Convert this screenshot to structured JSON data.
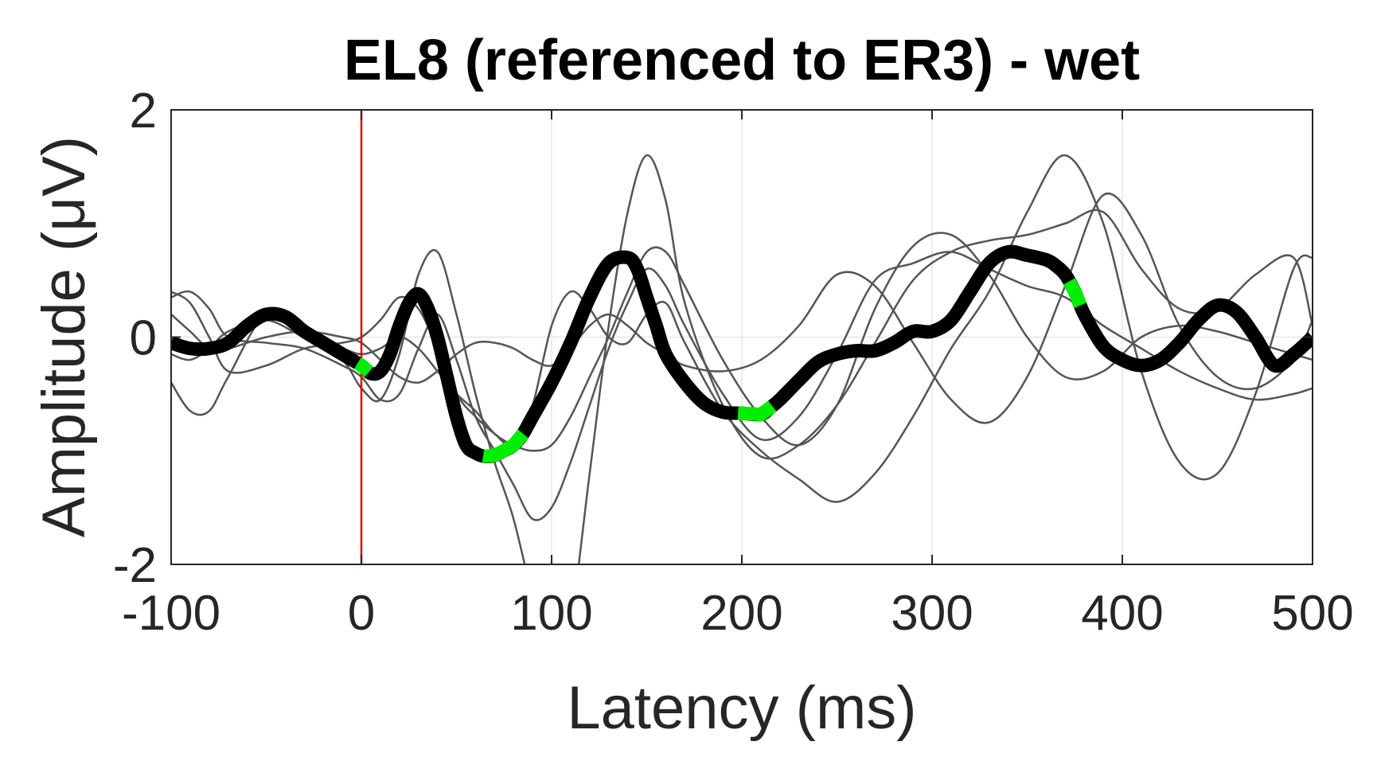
{
  "chart_data": {
    "type": "line",
    "title": "EL8 (referenced to ER3) - wet",
    "xlabel": "Latency (ms)",
    "ylabel": "Amplitude (μV)",
    "xlim": [
      -100,
      500
    ],
    "ylim": [
      -2,
      2
    ],
    "xticks": [
      -100,
      0,
      100,
      200,
      300,
      400,
      500
    ],
    "yticks": [
      -2,
      0,
      2
    ],
    "xtick_labels": [
      "-100",
      "0",
      "100",
      "200",
      "300",
      "400",
      "500"
    ],
    "ytick_labels": [
      "-2",
      "0",
      "2"
    ],
    "grid": true,
    "legend": "none",
    "stimulus_onset_ms": 0,
    "colors": {
      "mean": "#000000",
      "trials": "#555555",
      "highlight": "#00ee00",
      "onset": "#e60000",
      "grid": "#e6e6e6",
      "axes": "#262626"
    },
    "mean_series": {
      "x": [
        -100,
        -90,
        -80,
        -70,
        -60,
        -50,
        -40,
        -30,
        -20,
        -10,
        0,
        5,
        10,
        15,
        20,
        25,
        30,
        35,
        40,
        45,
        50,
        55,
        60,
        65,
        70,
        75,
        80,
        85,
        90,
        100,
        110,
        120,
        130,
        140,
        145,
        150,
        155,
        160,
        170,
        180,
        190,
        200,
        210,
        215,
        220,
        230,
        240,
        250,
        260,
        270,
        280,
        290,
        300,
        310,
        320,
        330,
        340,
        350,
        360,
        365,
        370,
        375,
        380,
        390,
        400,
        410,
        420,
        430,
        440,
        450,
        460,
        470,
        480,
        490,
        500
      ],
      "y": [
        -0.05,
        -0.1,
        -0.1,
        -0.05,
        0.1,
        0.2,
        0.18,
        0.05,
        -0.05,
        -0.15,
        -0.25,
        -0.32,
        -0.3,
        -0.15,
        0.1,
        0.3,
        0.38,
        0.25,
        0.0,
        -0.35,
        -0.7,
        -0.95,
        -1.02,
        -1.05,
        -1.04,
        -1.0,
        -0.95,
        -0.85,
        -0.7,
        -0.4,
        -0.05,
        0.35,
        0.65,
        0.7,
        0.6,
        0.35,
        0.1,
        -0.15,
        -0.4,
        -0.58,
        -0.66,
        -0.67,
        -0.68,
        -0.62,
        -0.55,
        -0.38,
        -0.22,
        -0.15,
        -0.12,
        -0.12,
        -0.05,
        0.05,
        0.05,
        0.15,
        0.4,
        0.65,
        0.75,
        0.72,
        0.68,
        0.63,
        0.55,
        0.4,
        0.2,
        -0.08,
        -0.2,
        -0.25,
        -0.2,
        -0.05,
        0.15,
        0.28,
        0.22,
        0.0,
        -0.25,
        -0.15,
        0.0
      ]
    },
    "highlight_windows": [
      [
        -2,
        4
      ],
      [
        64,
        85
      ],
      [
        198,
        216
      ],
      [
        372,
        378
      ]
    ],
    "trial_series": [
      {
        "x": [
          -100,
          -90,
          -80,
          -70,
          -50,
          -30,
          -10,
          0,
          10,
          20,
          30,
          40,
          50,
          60,
          70,
          80,
          90,
          100,
          110,
          120,
          130,
          140,
          150,
          160,
          170,
          190,
          210,
          230,
          250,
          270,
          290,
          310,
          330,
          350,
          370,
          390,
          410,
          430,
          450,
          470,
          490,
          500
        ],
        "y": [
          0.35,
          0.4,
          0.25,
          0.0,
          -0.05,
          -0.1,
          -0.25,
          -0.35,
          -0.55,
          -0.5,
          -0.1,
          0.2,
          -0.2,
          -0.7,
          -1.0,
          -1.3,
          -1.6,
          -1.5,
          -1.1,
          -0.6,
          -0.1,
          0.3,
          0.6,
          0.45,
          0.1,
          -0.5,
          -0.9,
          -0.7,
          -0.15,
          0.5,
          0.65,
          0.75,
          0.6,
          0.45,
          0.35,
          0.1,
          -0.1,
          -0.3,
          -0.45,
          -0.55,
          -0.5,
          -0.45
        ]
      },
      {
        "x": [
          -100,
          -90,
          -80,
          -70,
          -50,
          -30,
          -10,
          0,
          10,
          20,
          30,
          40,
          50,
          60,
          70,
          80,
          90,
          100,
          110,
          120,
          130,
          140,
          150,
          160,
          170,
          190,
          210,
          230,
          250,
          270,
          290,
          310,
          330,
          350,
          370,
          390,
          410,
          430,
          450,
          470,
          490,
          500
        ],
        "y": [
          -0.4,
          -0.65,
          -0.65,
          -0.35,
          0.2,
          0.05,
          -0.2,
          -0.45,
          -0.55,
          -0.15,
          0.55,
          0.75,
          0.2,
          -0.5,
          -1.1,
          -1.6,
          -2.3,
          -3.0,
          -2.5,
          -1.2,
          0.1,
          1.1,
          1.6,
          1.2,
          0.3,
          -0.6,
          -1.05,
          -0.95,
          -0.6,
          -0.05,
          0.5,
          0.75,
          0.85,
          0.9,
          1.0,
          1.1,
          0.6,
          0.25,
          0.25,
          0.55,
          0.7,
          0.1
        ]
      },
      {
        "x": [
          -100,
          -90,
          -80,
          -70,
          -50,
          -30,
          -10,
          0,
          10,
          20,
          30,
          40,
          50,
          60,
          70,
          80,
          90,
          100,
          110,
          120,
          130,
          140,
          150,
          160,
          170,
          190,
          210,
          230,
          250,
          270,
          290,
          310,
          330,
          350,
          370,
          390,
          410,
          430,
          450,
          470,
          490,
          500
        ],
        "y": [
          0.4,
          0.3,
          0.0,
          -0.3,
          -0.25,
          -0.1,
          -0.05,
          0.0,
          0.15,
          0.35,
          0.25,
          -0.1,
          -0.5,
          -0.7,
          -0.85,
          -0.95,
          -0.6,
          0.1,
          0.4,
          0.25,
          0.0,
          -0.05,
          0.2,
          0.3,
          -0.05,
          -0.65,
          -1.0,
          -1.25,
          -1.45,
          -1.2,
          -0.7,
          -0.1,
          0.4,
          1.1,
          1.6,
          1.0,
          -0.3,
          -1.1,
          -1.2,
          -0.5,
          0.6,
          0.7
        ]
      },
      {
        "x": [
          -100,
          -90,
          -80,
          -70,
          -50,
          -30,
          -10,
          0,
          10,
          20,
          30,
          40,
          50,
          60,
          70,
          80,
          90,
          100,
          110,
          120,
          130,
          140,
          150,
          160,
          170,
          190,
          210,
          230,
          250,
          270,
          290,
          310,
          330,
          350,
          370,
          390,
          410,
          430,
          450,
          470,
          490,
          500
        ],
        "y": [
          -0.15,
          -0.2,
          -0.1,
          0.05,
          0.15,
          0.0,
          -0.1,
          -0.15,
          -0.1,
          0.0,
          -0.1,
          -0.3,
          -0.5,
          -0.65,
          -0.85,
          -0.95,
          -1.0,
          -0.95,
          -0.7,
          -0.35,
          0.0,
          0.4,
          0.75,
          0.75,
          0.45,
          -0.2,
          -0.7,
          -0.95,
          -0.6,
          0.25,
          0.8,
          0.9,
          0.55,
          0.0,
          -0.35,
          -0.3,
          0.0,
          0.1,
          0.05,
          -0.05,
          -0.15,
          -0.2
        ]
      },
      {
        "x": [
          -100,
          -90,
          -80,
          -70,
          -50,
          -30,
          -10,
          0,
          10,
          20,
          30,
          40,
          50,
          60,
          70,
          80,
          90,
          100,
          110,
          120,
          130,
          140,
          150,
          160,
          170,
          190,
          210,
          230,
          250,
          270,
          290,
          310,
          330,
          350,
          370,
          390,
          410,
          430,
          450,
          470,
          490,
          500
        ],
        "y": [
          0.2,
          0.05,
          -0.1,
          -0.1,
          0.0,
          0.05,
          0.0,
          -0.05,
          -0.2,
          -0.35,
          -0.4,
          -0.3,
          -0.15,
          -0.05,
          -0.05,
          -0.1,
          -0.2,
          -0.25,
          -0.1,
          0.1,
          0.2,
          0.1,
          -0.05,
          -0.15,
          -0.25,
          -0.3,
          -0.2,
          0.1,
          0.55,
          0.45,
          -0.05,
          -0.55,
          -0.75,
          -0.35,
          0.45,
          1.25,
          0.9,
          0.1,
          -0.35,
          -0.45,
          -0.2,
          0.15
        ]
      }
    ]
  }
}
